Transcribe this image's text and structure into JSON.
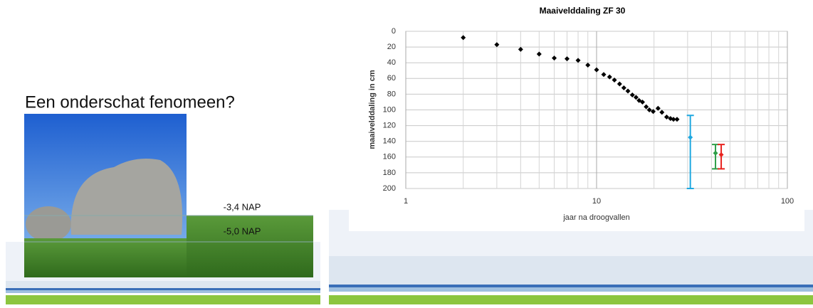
{
  "slide": {
    "heading": "Een onderschat fenomeen?",
    "level_top": "-3,4 NAP",
    "level_bottom": "-5,0 NAP"
  },
  "chart_data": {
    "type": "scatter",
    "title": "Maaivelddaling ZF 30",
    "x_label": "jaar na droogvallen",
    "y_label": "maaivelddaling in cm",
    "xscale": "log",
    "xlim": [
      1,
      100
    ],
    "xticks": [
      1,
      10,
      100
    ],
    "ylim": [
      0,
      200
    ],
    "y_inverted": true,
    "yticks": [
      0,
      20,
      40,
      60,
      80,
      100,
      120,
      140,
      160,
      180,
      200
    ],
    "grid": true,
    "series": [
      {
        "color": "#000000",
        "marker": "diamond",
        "x": [
          2,
          3,
          4,
          5,
          6,
          7,
          8,
          9,
          10,
          10.9,
          11.7,
          12.4,
          13.2,
          13.9,
          14.6,
          15.4,
          16.1,
          16.7,
          17.4,
          18.2,
          18.9,
          19.8,
          21,
          22,
          23.3,
          24.4,
          25.3,
          26.4
        ],
        "values": [
          8,
          17,
          23,
          29,
          34,
          35,
          37,
          43,
          49,
          55,
          58,
          62,
          67,
          72,
          76,
          81,
          84,
          88,
          90,
          96,
          100,
          102,
          98,
          103,
          109,
          111,
          112,
          112
        ]
      },
      {
        "color": "#1fa8e0",
        "marker": "diamond",
        "x": [
          31
        ],
        "values": [
          135
        ],
        "error_low": [
          107
        ],
        "error_high": [
          200
        ]
      },
      {
        "color": "#2e9e48",
        "marker": "diamond",
        "x": [
          42
        ],
        "values": [
          155
        ],
        "error_low": [
          144
        ],
        "error_high": [
          175
        ]
      },
      {
        "color": "#e8231f",
        "marker": "diamond",
        "x": [
          45
        ],
        "values": [
          157
        ],
        "error_low": [
          144
        ],
        "error_high": [
          175
        ]
      }
    ]
  }
}
